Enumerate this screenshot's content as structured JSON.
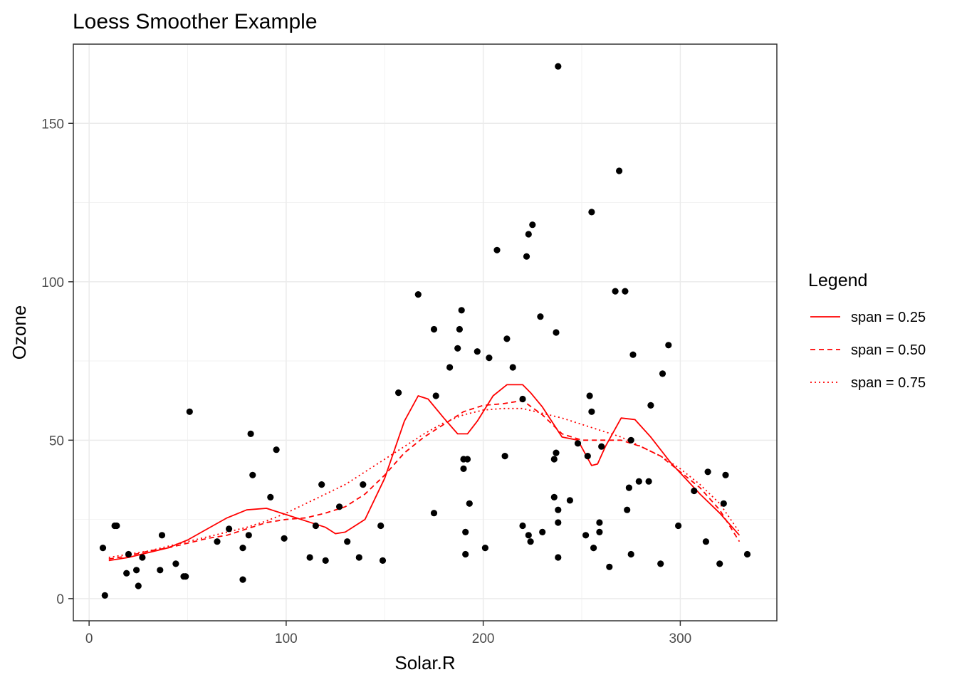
{
  "chart_data": {
    "type": "scatter",
    "title": "Loess Smoother Example",
    "xlabel": "Solar.R",
    "ylabel": "Ozone",
    "xlim": [
      -8,
      349
    ],
    "ylim": [
      -7,
      175
    ],
    "x_ticks": [
      0,
      100,
      200,
      300
    ],
    "y_ticks": [
      0,
      50,
      100,
      150
    ],
    "x_tick_labels": [
      "0",
      "100",
      "200",
      "300"
    ],
    "y_tick_labels": [
      "0",
      "50",
      "100",
      "150"
    ],
    "grid": true,
    "point_color": "#000000",
    "line_color": "#FF0000",
    "legend": {
      "title": "Legend",
      "placement": "right",
      "entries": [
        "span = 0.25",
        "span = 0.50",
        "span = 0.75"
      ]
    },
    "points": [
      [
        7,
        16
      ],
      [
        8,
        1
      ],
      [
        13,
        23
      ],
      [
        14,
        23
      ],
      [
        19,
        8
      ],
      [
        20,
        14
      ],
      [
        24,
        9
      ],
      [
        25,
        4
      ],
      [
        27,
        13
      ],
      [
        36,
        9
      ],
      [
        37,
        20
      ],
      [
        44,
        11
      ],
      [
        48,
        7
      ],
      [
        49,
        7
      ],
      [
        51,
        59
      ],
      [
        65,
        18
      ],
      [
        71,
        22
      ],
      [
        78,
        6
      ],
      [
        78,
        16
      ],
      [
        81,
        20
      ],
      [
        82,
        52
      ],
      [
        83,
        39
      ],
      [
        92,
        32
      ],
      [
        95,
        47
      ],
      [
        99,
        19
      ],
      [
        112,
        13
      ],
      [
        115,
        23
      ],
      [
        118,
        36
      ],
      [
        120,
        12
      ],
      [
        127,
        29
      ],
      [
        131,
        18
      ],
      [
        137,
        13
      ],
      [
        139,
        36
      ],
      [
        148,
        23
      ],
      [
        149,
        12
      ],
      [
        157,
        65
      ],
      [
        167,
        96
      ],
      [
        175,
        27
      ],
      [
        175,
        85
      ],
      [
        176,
        64
      ],
      [
        183,
        73
      ],
      [
        187,
        79
      ],
      [
        188,
        85
      ],
      [
        189,
        91
      ],
      [
        190,
        41
      ],
      [
        190,
        44
      ],
      [
        191,
        14
      ],
      [
        191,
        21
      ],
      [
        192,
        44
      ],
      [
        193,
        30
      ],
      [
        197,
        78
      ],
      [
        201,
        16
      ],
      [
        203,
        76
      ],
      [
        207,
        110
      ],
      [
        211,
        45
      ],
      [
        212,
        82
      ],
      [
        215,
        73
      ],
      [
        220,
        23
      ],
      [
        220,
        63
      ],
      [
        222,
        108
      ],
      [
        223,
        115
      ],
      [
        223,
        20
      ],
      [
        224,
        18
      ],
      [
        225,
        118
      ],
      [
        229,
        89
      ],
      [
        230,
        21
      ],
      [
        236,
        44
      ],
      [
        236,
        32
      ],
      [
        237,
        84
      ],
      [
        237,
        46
      ],
      [
        238,
        28
      ],
      [
        238,
        13
      ],
      [
        238,
        24
      ],
      [
        238,
        168
      ],
      [
        244,
        31
      ],
      [
        248,
        49
      ],
      [
        252,
        20
      ],
      [
        253,
        45
      ],
      [
        254,
        64
      ],
      [
        255,
        59
      ],
      [
        255,
        122
      ],
      [
        256,
        16
      ],
      [
        259,
        21
      ],
      [
        259,
        24
      ],
      [
        260,
        48
      ],
      [
        264,
        10
      ],
      [
        267,
        97
      ],
      [
        269,
        135
      ],
      [
        272,
        97
      ],
      [
        273,
        28
      ],
      [
        274,
        35
      ],
      [
        275,
        14
      ],
      [
        275,
        50
      ],
      [
        276,
        77
      ],
      [
        279,
        37
      ],
      [
        284,
        37
      ],
      [
        285,
        61
      ],
      [
        290,
        11
      ],
      [
        291,
        71
      ],
      [
        294,
        80
      ],
      [
        299,
        23
      ],
      [
        307,
        34
      ],
      [
        313,
        18
      ],
      [
        314,
        40
      ],
      [
        320,
        11
      ],
      [
        322,
        30
      ],
      [
        323,
        39
      ],
      [
        334,
        14
      ]
    ],
    "series": [
      {
        "name": "span = 0.25",
        "dash": "solid",
        "x": [
          10,
          20,
          30,
          40,
          50,
          60,
          70,
          80,
          90,
          100,
          110,
          120,
          125,
          130,
          140,
          150,
          160,
          167,
          172,
          180,
          187,
          192,
          197,
          205,
          212,
          220,
          224,
          230,
          240,
          248,
          255,
          258,
          262,
          270,
          277,
          285,
          295,
          310,
          320,
          330
        ],
        "y": [
          12,
          13,
          14.5,
          16,
          18.5,
          22,
          25.5,
          28,
          28.5,
          26.5,
          24.5,
          22.5,
          20.5,
          21,
          25,
          38,
          56,
          64,
          63,
          57,
          52,
          52,
          56,
          64,
          67.5,
          67.5,
          65,
          60.5,
          51,
          50,
          42,
          42.5,
          48,
          57,
          56.5,
          51,
          43,
          33,
          27,
          20
        ]
      },
      {
        "name": "span = 0.50",
        "dash": "dashed",
        "x": [
          10,
          20,
          30,
          40,
          50,
          60,
          70,
          80,
          90,
          100,
          110,
          120,
          130,
          140,
          150,
          160,
          170,
          180,
          190,
          200,
          210,
          220,
          230,
          240,
          250,
          260,
          270,
          280,
          290,
          300,
          310,
          320,
          330
        ],
        "y": [
          12.5,
          13.5,
          15,
          16,
          17.5,
          19,
          20,
          22,
          24,
          25,
          25.5,
          27,
          29,
          33,
          39,
          46,
          51,
          55,
          59,
          61,
          61.5,
          62.5,
          58,
          52,
          50,
          50,
          50,
          48,
          45,
          40,
          35,
          28,
          18
        ]
      },
      {
        "name": "span = 0.75",
        "dash": "dotted",
        "x": [
          10,
          20,
          30,
          40,
          50,
          60,
          70,
          80,
          90,
          100,
          110,
          120,
          130,
          140,
          150,
          160,
          170,
          180,
          190,
          200,
          210,
          220,
          230,
          240,
          250,
          260,
          270,
          280,
          290,
          300,
          310,
          320,
          330
        ],
        "y": [
          13,
          14,
          15,
          16.5,
          18,
          19.5,
          21,
          22.5,
          24.5,
          27,
          30,
          33,
          36,
          40,
          44,
          48,
          52,
          55.5,
          58,
          59.5,
          60,
          60,
          58.5,
          57,
          55,
          53,
          51,
          48,
          45,
          41,
          36,
          30,
          21
        ]
      }
    ]
  }
}
